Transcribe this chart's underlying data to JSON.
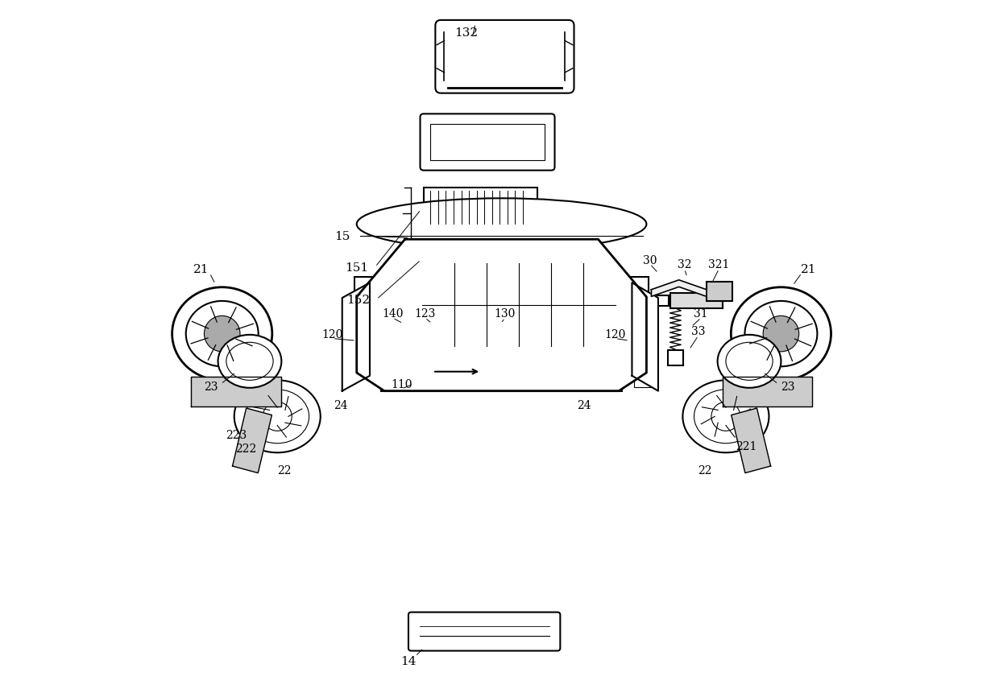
{
  "bg_color": "#ffffff",
  "line_color": "#000000",
  "figsize": [
    12.4,
    8.62
  ],
  "dpi": 100,
  "lw_main": 1.5,
  "lw_thin": 0.8,
  "lw_thick": 2.0
}
